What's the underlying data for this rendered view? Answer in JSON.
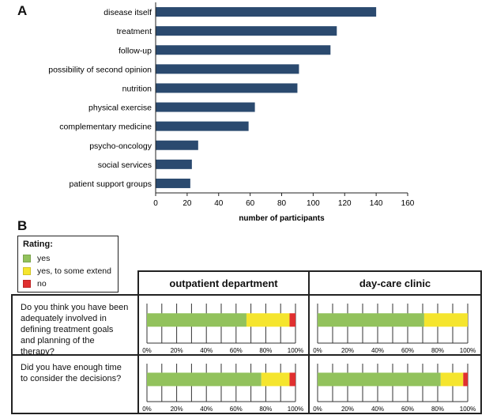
{
  "panel_a_label": "A",
  "panel_b_label": "B",
  "chart_data": [
    {
      "type": "bar",
      "orientation": "horizontal",
      "categories": [
        "disease itself",
        "treatment",
        "follow-up",
        "possibility of second opinion",
        "nutrition",
        "physical exercise",
        "complementary medicine",
        "psycho-oncology",
        "social services",
        "patient support groups"
      ],
      "values": [
        140,
        115,
        111,
        91,
        90,
        63,
        59,
        27,
        23,
        22
      ],
      "xlabel": "number of participants",
      "xlim": [
        0,
        160
      ],
      "xticks": [
        0,
        20,
        40,
        60,
        80,
        100,
        120,
        140,
        160
      ],
      "color": "#2b4a6f",
      "grid": false
    },
    {
      "type": "bar",
      "orientation": "horizontal",
      "stacked": true,
      "percent": true,
      "legend_title": "Rating:",
      "legend_placement": "top-left",
      "series_names": [
        "yes",
        "yes, to some extend",
        "no"
      ],
      "colors": [
        "#92c25c",
        "#f5e52e",
        "#e03030"
      ],
      "columns": [
        "outpatient department",
        "day-care clinic"
      ],
      "questions": [
        "Do you think you have been adequately involved in defining treatment goals and planning of the therapy?",
        "Did you have enough time to consider the decisions?"
      ],
      "xticks": [
        "0%",
        "20%",
        "40%",
        "60%",
        "80%",
        "100%"
      ],
      "values": [
        [
          [
            67,
            29,
            4
          ],
          [
            71,
            29,
            0
          ]
        ],
        [
          [
            77,
            19,
            4
          ],
          [
            82,
            15,
            3
          ]
        ]
      ]
    }
  ]
}
